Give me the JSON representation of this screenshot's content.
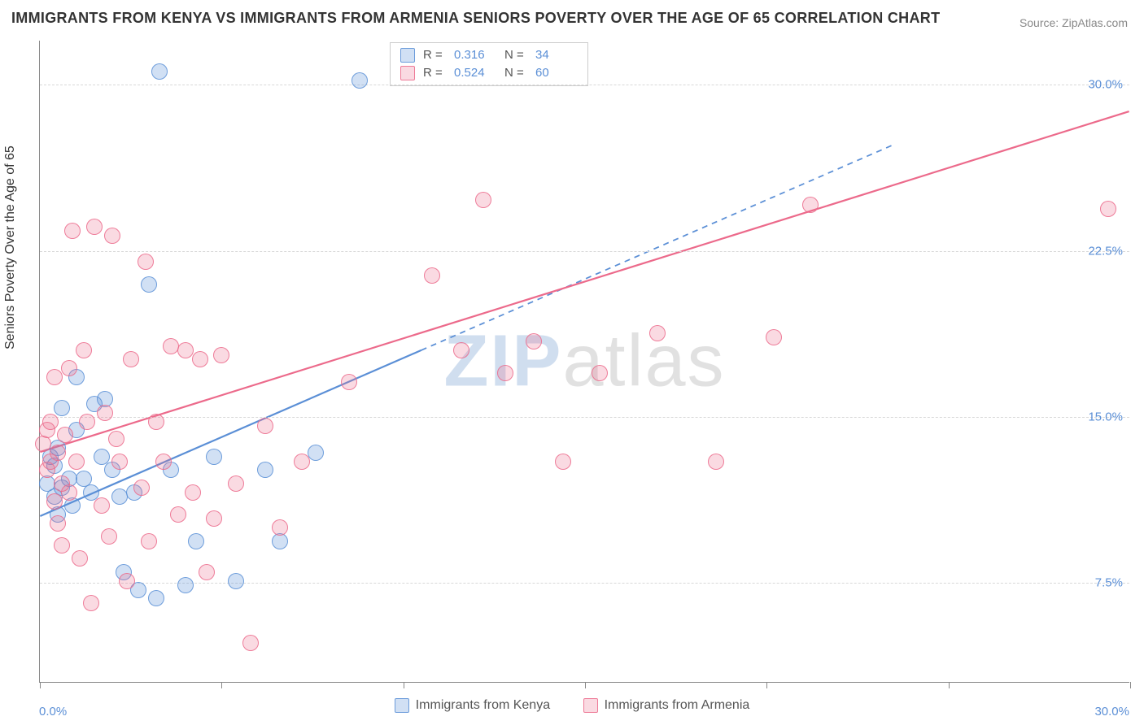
{
  "title": "IMMIGRANTS FROM KENYA VS IMMIGRANTS FROM ARMENIA SENIORS POVERTY OVER THE AGE OF 65 CORRELATION CHART",
  "source_label": "Source: ",
  "source_name": "ZipAtlas.com",
  "ylabel": "Seniors Poverty Over the Age of 65",
  "watermark_a": "ZIP",
  "watermark_b": "atlas",
  "chart": {
    "type": "scatter",
    "background_color": "#ffffff",
    "grid_color": "#d8d8d8",
    "axis_color": "#888888",
    "tick_color": "#5b8fd6",
    "tick_fontsize": 15,
    "title_fontsize": 18,
    "label_fontsize": 16,
    "xlim": [
      0,
      30
    ],
    "ylim": [
      3,
      32
    ],
    "y_ticks": [
      7.5,
      15.0,
      22.5,
      30.0
    ],
    "y_tick_labels": [
      "7.5%",
      "15.0%",
      "22.5%",
      "30.0%"
    ],
    "x_ticks": [
      0,
      5,
      10,
      15,
      20,
      25,
      30
    ],
    "x_end_labels": [
      "0.0%",
      "30.0%"
    ],
    "marker_radius": 10,
    "marker_opacity_fill": 0.28,
    "marker_opacity_stroke": 0.9,
    "series": [
      {
        "name": "Immigrants from Kenya",
        "color": "#5b8fd6",
        "fill": "rgba(91,143,214,0.28)",
        "stroke": "rgba(91,143,214,0.85)",
        "R": "0.316",
        "N": "34",
        "trend": {
          "x1": 0,
          "y1": 10.5,
          "x2": 10.5,
          "y2": 18.0,
          "solid_until_x": 10.5,
          "dash_to_x": 23.5
        },
        "line_width": 2.2,
        "points": [
          [
            0.2,
            12.0
          ],
          [
            0.3,
            13.2
          ],
          [
            0.4,
            11.4
          ],
          [
            0.4,
            12.8
          ],
          [
            0.5,
            10.6
          ],
          [
            0.5,
            13.6
          ],
          [
            0.6,
            11.8
          ],
          [
            0.6,
            15.4
          ],
          [
            0.8,
            12.2
          ],
          [
            0.9,
            11.0
          ],
          [
            1.0,
            14.4
          ],
          [
            1.0,
            16.8
          ],
          [
            1.2,
            12.2
          ],
          [
            1.4,
            11.6
          ],
          [
            1.5,
            15.6
          ],
          [
            1.7,
            13.2
          ],
          [
            1.8,
            15.8
          ],
          [
            2.0,
            12.6
          ],
          [
            2.2,
            11.4
          ],
          [
            2.3,
            8.0
          ],
          [
            2.6,
            11.6
          ],
          [
            2.7,
            7.2
          ],
          [
            3.0,
            21.0
          ],
          [
            3.2,
            6.8
          ],
          [
            3.3,
            30.6
          ],
          [
            3.6,
            12.6
          ],
          [
            4.0,
            7.4
          ],
          [
            4.3,
            9.4
          ],
          [
            4.8,
            13.2
          ],
          [
            5.4,
            7.6
          ],
          [
            6.2,
            12.6
          ],
          [
            6.6,
            9.4
          ],
          [
            7.6,
            13.4
          ],
          [
            8.8,
            30.2
          ]
        ]
      },
      {
        "name": "Immigrants from Armenia",
        "color": "#ec6a8b",
        "fill": "rgba(236,106,139,0.25)",
        "stroke": "rgba(236,106,139,0.85)",
        "R": "0.524",
        "N": "60",
        "trend": {
          "x1": 0,
          "y1": 13.4,
          "x2": 30,
          "y2": 28.8,
          "solid_until_x": 30,
          "dash_to_x": 30
        },
        "line_width": 2.2,
        "points": [
          [
            0.1,
            13.8
          ],
          [
            0.2,
            12.6
          ],
          [
            0.2,
            14.4
          ],
          [
            0.3,
            13.0
          ],
          [
            0.3,
            14.8
          ],
          [
            0.4,
            11.2
          ],
          [
            0.4,
            16.8
          ],
          [
            0.5,
            13.4
          ],
          [
            0.5,
            10.2
          ],
          [
            0.6,
            12.0
          ],
          [
            0.6,
            9.2
          ],
          [
            0.7,
            14.2
          ],
          [
            0.8,
            17.2
          ],
          [
            0.8,
            11.6
          ],
          [
            0.9,
            23.4
          ],
          [
            1.0,
            13.0
          ],
          [
            1.1,
            8.6
          ],
          [
            1.2,
            18.0
          ],
          [
            1.3,
            14.8
          ],
          [
            1.4,
            6.6
          ],
          [
            1.5,
            23.6
          ],
          [
            1.7,
            11.0
          ],
          [
            1.8,
            15.2
          ],
          [
            1.9,
            9.6
          ],
          [
            2.0,
            23.2
          ],
          [
            2.2,
            13.0
          ],
          [
            2.4,
            7.6
          ],
          [
            2.5,
            17.6
          ],
          [
            2.8,
            11.8
          ],
          [
            2.9,
            22.0
          ],
          [
            3.0,
            9.4
          ],
          [
            3.2,
            14.8
          ],
          [
            3.4,
            13.0
          ],
          [
            3.6,
            18.2
          ],
          [
            3.8,
            10.6
          ],
          [
            4.0,
            18.0
          ],
          [
            4.2,
            11.6
          ],
          [
            4.4,
            17.6
          ],
          [
            4.6,
            8.0
          ],
          [
            4.8,
            10.4
          ],
          [
            5.0,
            17.8
          ],
          [
            5.4,
            12.0
          ],
          [
            5.8,
            4.8
          ],
          [
            6.2,
            14.6
          ],
          [
            6.6,
            10.0
          ],
          [
            7.2,
            13.0
          ],
          [
            8.5,
            16.6
          ],
          [
            10.8,
            21.4
          ],
          [
            11.6,
            18.0
          ],
          [
            12.2,
            24.8
          ],
          [
            12.8,
            17.0
          ],
          [
            13.6,
            18.4
          ],
          [
            14.4,
            13.0
          ],
          [
            15.4,
            17.0
          ],
          [
            17.0,
            18.8
          ],
          [
            18.6,
            13.0
          ],
          [
            20.2,
            18.6
          ],
          [
            21.2,
            24.6
          ],
          [
            29.4,
            24.4
          ],
          [
            2.1,
            14.0
          ]
        ]
      }
    ]
  },
  "legend_top": {
    "R_label": "R  =",
    "N_label": "N  ="
  },
  "legend_bottom": {
    "items": [
      "Immigrants from Kenya",
      "Immigrants from Armenia"
    ]
  }
}
